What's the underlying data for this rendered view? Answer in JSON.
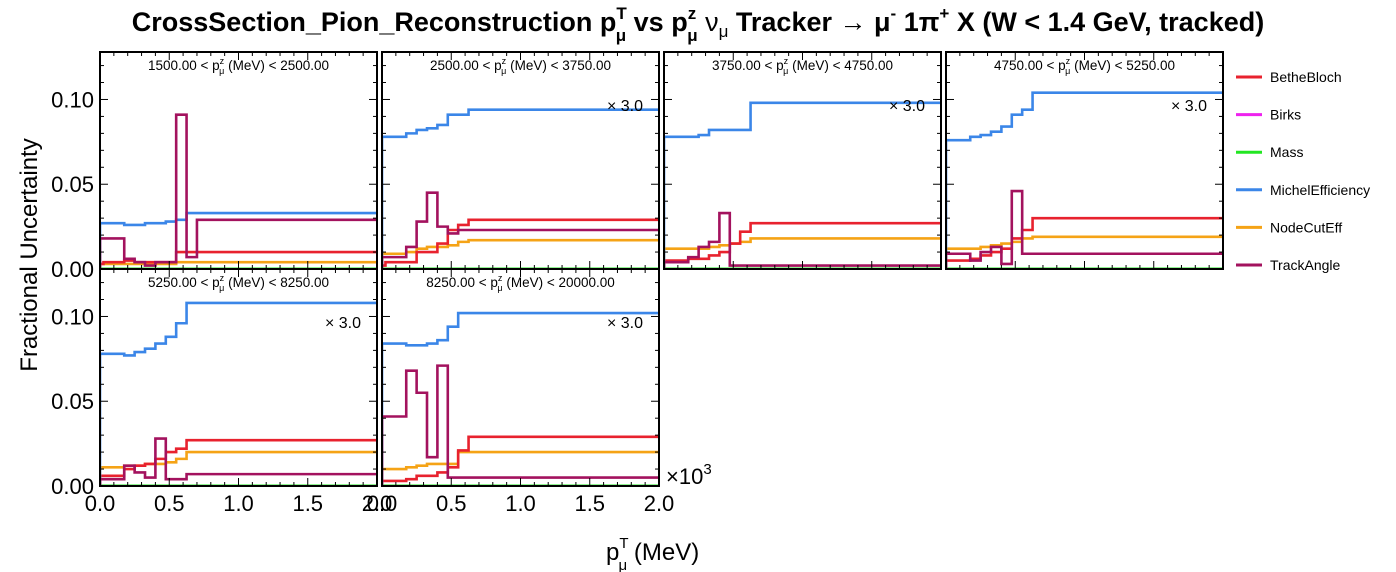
{
  "title": {
    "a": "CrossSection_Pion_Reconstruction p",
    "a_sup": "T",
    "a_sub": "μ",
    "b": " vs p",
    "b_sup": "z",
    "b_sub": "μ",
    "c": "  ν",
    "c_sub": "μ",
    "d": " Tracker  → μ",
    "d_sup": "-",
    "e": " 1π",
    "e_sup": "+",
    "f": " X  (W < 1.4 GeV, tracked)"
  },
  "ylabel": "Fractional Uncertainty",
  "xlabel": {
    "p": "p",
    "sup": "T",
    "sub": "μ",
    "rest": " (MeV)"
  },
  "x_exponent": "×10",
  "x_exponent_sup": "3",
  "x_ticks": [
    "0.0",
    "0.5",
    "1.0",
    "1.5",
    "2.0"
  ],
  "y_ticks": [
    "0.00",
    "0.05",
    "0.10"
  ],
  "scale_label": "× 3.0",
  "colors": {
    "BetheBloch": "#e8222e",
    "Birks": "#ee22ee",
    "Mass": "#22e622",
    "MichelEfficiency": "#3b86e8",
    "NodeCutEff": "#f5a316",
    "TrackAngle": "#a3125e"
  },
  "legend": [
    "BetheBloch",
    "Birks",
    "Mass",
    "MichelEfficiency",
    "NodeCutEff",
    "TrackAngle"
  ],
  "chart_data": {
    "type": "line",
    "style": "step-histogram",
    "xlabel": "p_μ^T (MeV)",
    "ylabel": "Fractional Uncertainty",
    "xlim": [
      0,
      2000
    ],
    "ylim": [
      0,
      0.128
    ],
    "bin_edges": [
      0,
      25,
      175,
      250,
      325,
      400,
      475,
      550,
      625,
      700,
      2000
    ],
    "panels": [
      {
        "label": {
          "lo": "1500.00",
          "hi": "2500.00"
        },
        "scale": null,
        "series": [
          {
            "name": "BetheBloch",
            "values": [
              0.003,
              0.004,
              0.005,
              0.004,
              0.004,
              0.004,
              0.004,
              0.01,
              0.01,
              0.01
            ]
          },
          {
            "name": "Birks",
            "values": [
              0,
              0,
              0,
              0,
              0,
              0,
              0,
              0,
              0,
              0
            ]
          },
          {
            "name": "Mass",
            "values": [
              0,
              0,
              0,
              0,
              0,
              0,
              0,
              0,
              0,
              0
            ]
          },
          {
            "name": "MichelEfficiency",
            "values": [
              0.027,
              0.027,
              0.026,
              0.026,
              0.027,
              0.027,
              0.028,
              0.029,
              0.033,
              0.033
            ]
          },
          {
            "name": "NodeCutEff",
            "values": [
              0.003,
              0.003,
              0.003,
              0.003,
              0.003,
              0.003,
              0.003,
              0.004,
              0.004,
              0.004
            ]
          },
          {
            "name": "TrackAngle",
            "values": [
              0.018,
              0.018,
              0.006,
              0.004,
              0.002,
              0.004,
              0.004,
              0.091,
              0.007,
              0.029
            ]
          }
        ]
      },
      {
        "label": {
          "lo": "2500.00",
          "hi": "3750.00"
        },
        "scale": "× 3.0",
        "series": [
          {
            "name": "BetheBloch",
            "values": [
              0.002,
              0.004,
              0.004,
              0.01,
              0.01,
              0.015,
              0.023,
              0.026,
              0.029,
              0.029
            ]
          },
          {
            "name": "Birks",
            "values": [
              0,
              0,
              0,
              0,
              0,
              0,
              0,
              0,
              0,
              0
            ]
          },
          {
            "name": "Mass",
            "values": [
              0,
              0,
              0,
              0,
              0,
              0,
              0,
              0,
              0,
              0
            ]
          },
          {
            "name": "MichelEfficiency",
            "values": [
              0.078,
              0.078,
              0.08,
              0.082,
              0.083,
              0.085,
              0.091,
              0.091,
              0.094,
              0.094
            ]
          },
          {
            "name": "NodeCutEff",
            "values": [
              0.009,
              0.009,
              0.01,
              0.012,
              0.013,
              0.013,
              0.014,
              0.016,
              0.017,
              0.017
            ]
          },
          {
            "name": "TrackAngle",
            "values": [
              0.007,
              0.007,
              0.013,
              0.028,
              0.045,
              0.025,
              0.021,
              0.023,
              0.023,
              0.023
            ]
          }
        ]
      },
      {
        "label": {
          "lo": "3750.00",
          "hi": "4750.00"
        },
        "scale": "× 3.0",
        "series": [
          {
            "name": "BetheBloch",
            "values": [
              0.005,
              0.005,
              0.006,
              0.006,
              0.008,
              0.01,
              0.015,
              0.022,
              0.027,
              0.027
            ]
          },
          {
            "name": "Birks",
            "values": [
              0,
              0,
              0,
              0,
              0,
              0,
              0,
              0,
              0,
              0
            ]
          },
          {
            "name": "Mass",
            "values": [
              0,
              0,
              0,
              0,
              0,
              0,
              0,
              0,
              0,
              0
            ]
          },
          {
            "name": "MichelEfficiency",
            "values": [
              0.078,
              0.078,
              0.078,
              0.079,
              0.082,
              0.082,
              0.082,
              0.082,
              0.098,
              0.098
            ]
          },
          {
            "name": "NodeCutEff",
            "values": [
              0.012,
              0.012,
              0.012,
              0.012,
              0.013,
              0.014,
              0.015,
              0.016,
              0.018,
              0.018
            ]
          },
          {
            "name": "TrackAngle",
            "values": [
              0.004,
              0.004,
              0.007,
              0.013,
              0.016,
              0.033,
              0.002,
              0.002,
              0.002,
              0.002
            ]
          }
        ]
      },
      {
        "label": {
          "lo": "4750.00",
          "hi": "5250.00"
        },
        "scale": "× 3.0",
        "series": [
          {
            "name": "BetheBloch",
            "values": [
              0.005,
              0.005,
              0.006,
              0.008,
              0.01,
              0.012,
              0.018,
              0.023,
              0.03,
              0.03
            ]
          },
          {
            "name": "Birks",
            "values": [
              0,
              0,
              0,
              0,
              0,
              0,
              0,
              0,
              0,
              0
            ]
          },
          {
            "name": "Mass",
            "values": [
              0,
              0,
              0,
              0,
              0,
              0,
              0,
              0,
              0,
              0
            ]
          },
          {
            "name": "MichelEfficiency",
            "values": [
              0.076,
              0.076,
              0.078,
              0.079,
              0.081,
              0.084,
              0.091,
              0.094,
              0.104,
              0.104
            ]
          },
          {
            "name": "NodeCutEff",
            "values": [
              0.012,
              0.012,
              0.012,
              0.013,
              0.014,
              0.015,
              0.016,
              0.018,
              0.019,
              0.019
            ]
          },
          {
            "name": "TrackAngle",
            "values": [
              0.009,
              0.009,
              0.005,
              0.01,
              0.013,
              0.003,
              0.046,
              0.009,
              0.009,
              0.009
            ]
          }
        ]
      },
      {
        "label": {
          "lo": "5250.00",
          "hi": "8250.00"
        },
        "scale": "× 3.0",
        "series": [
          {
            "name": "BetheBloch",
            "values": [
              0.006,
              0.006,
              0.01,
              0.012,
              0.013,
              0.016,
              0.02,
              0.022,
              0.027,
              0.027
            ]
          },
          {
            "name": "Birks",
            "values": [
              0,
              0,
              0,
              0,
              0,
              0,
              0,
              0,
              0,
              0
            ]
          },
          {
            "name": "Mass",
            "values": [
              0,
              0,
              0,
              0,
              0,
              0,
              0,
              0,
              0,
              0
            ]
          },
          {
            "name": "MichelEfficiency",
            "values": [
              0.078,
              0.078,
              0.077,
              0.079,
              0.081,
              0.084,
              0.088,
              0.096,
              0.108,
              0.108
            ]
          },
          {
            "name": "NodeCutEff",
            "values": [
              0.011,
              0.011,
              0.012,
              0.012,
              0.013,
              0.013,
              0.014,
              0.016,
              0.02,
              0.02
            ]
          },
          {
            "name": "TrackAngle",
            "values": [
              0.004,
              0.004,
              0.012,
              0.008,
              0.005,
              0.028,
              0.004,
              0.004,
              0.007,
              0.007
            ]
          }
        ]
      },
      {
        "label": {
          "lo": "8250.00",
          "hi": "20000.00"
        },
        "scale": "× 3.0",
        "series": [
          {
            "name": "BetheBloch",
            "values": [
              0.003,
              0.003,
              0.004,
              0.006,
              0.006,
              0.008,
              0.011,
              0.021,
              0.029,
              0.029
            ]
          },
          {
            "name": "Birks",
            "values": [
              0,
              0,
              0,
              0,
              0,
              0,
              0,
              0,
              0,
              0
            ]
          },
          {
            "name": "Mass",
            "values": [
              0,
              0,
              0,
              0,
              0,
              0,
              0,
              0,
              0,
              0
            ]
          },
          {
            "name": "MichelEfficiency",
            "values": [
              0.084,
              0.084,
              0.083,
              0.083,
              0.084,
              0.086,
              0.094,
              0.102,
              0.102,
              0.102
            ]
          },
          {
            "name": "NodeCutEff",
            "values": [
              0.01,
              0.01,
              0.011,
              0.012,
              0.013,
              0.013,
              0.013,
              0.02,
              0.02,
              0.02
            ]
          },
          {
            "name": "TrackAngle",
            "values": [
              0.041,
              0.041,
              0.068,
              0.055,
              0.017,
              0.071,
              0.005,
              0.005,
              0.005,
              0.005
            ]
          }
        ]
      }
    ]
  }
}
